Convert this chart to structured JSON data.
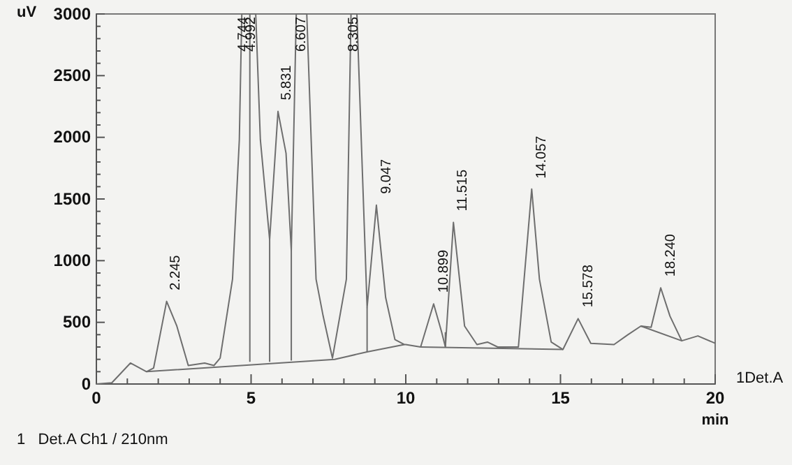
{
  "chart_data": {
    "type": "line",
    "xlabel": "min",
    "ylabel": "uV",
    "xlim": [
      0,
      20
    ],
    "ylim": [
      0,
      3000
    ],
    "xticks": [
      0,
      {
        "value": 1,
        "label": null
      },
      {
        "value": 2,
        "label": null
      },
      {
        "value": 3,
        "label": null
      },
      {
        "value": 4,
        "label": null
      },
      5,
      {
        "value": 6,
        "label": null
      },
      {
        "value": 7,
        "label": null
      },
      {
        "value": 8,
        "label": null
      },
      {
        "value": 9,
        "label": null
      },
      10,
      {
        "value": 11,
        "label": null
      },
      {
        "value": 12,
        "label": null
      },
      {
        "value": 13,
        "label": null
      },
      {
        "value": 14,
        "label": null
      },
      15,
      {
        "value": 16,
        "label": null
      },
      {
        "value": 17,
        "label": null
      },
      {
        "value": 18,
        "label": null
      },
      {
        "value": 19,
        "label": null
      },
      20
    ],
    "yticks": [
      0,
      {
        "value": 100,
        "label": null
      },
      {
        "value": 200,
        "label": null
      },
      {
        "value": 300,
        "label": null
      },
      {
        "value": 400,
        "label": null
      },
      500,
      {
        "value": 600,
        "label": null
      },
      {
        "value": 700,
        "label": null
      },
      {
        "value": 800,
        "label": null
      },
      {
        "value": 900,
        "label": null
      },
      1000,
      {
        "value": 1100,
        "label": null
      },
      {
        "value": 1200,
        "label": null
      },
      {
        "value": 1300,
        "label": null
      },
      {
        "value": 1400,
        "label": null
      },
      1500,
      {
        "value": 1600,
        "label": null
      },
      {
        "value": 1700,
        "label": null
      },
      {
        "value": 1800,
        "label": null
      },
      {
        "value": 1900,
        "label": null
      },
      2000,
      {
        "value": 2100,
        "label": null
      },
      {
        "value": 2200,
        "label": null
      },
      {
        "value": 2300,
        "label": null
      },
      {
        "value": 2400,
        "label": null
      },
      2500,
      {
        "value": 2600,
        "label": null
      },
      {
        "value": 2700,
        "label": null
      },
      {
        "value": 2800,
        "label": null
      },
      {
        "value": 2900,
        "label": null
      },
      3000
    ],
    "marker": "none",
    "line_style": "solid",
    "series": [
      {
        "color": "#6e6e6e",
        "x": [
          0,
          0.5,
          1.1,
          1.62,
          1.85,
          2.27,
          2.6,
          2.97,
          3.5,
          3.8,
          4.0,
          4.4,
          4.62,
          4.7,
          5.15,
          5.3,
          5.6,
          5.87,
          6.13,
          6.3,
          6.46,
          6.8,
          7.1,
          7.33,
          7.63,
          8.08,
          8.23,
          8.42,
          8.75,
          9.05,
          9.35,
          9.65,
          9.95,
          10.0,
          10.48,
          10.9,
          11.16,
          11.28,
          11.54,
          11.9,
          12.3,
          12.64,
          12.97,
          13.64,
          14.07,
          14.32,
          14.7,
          15.08,
          15.57,
          15.98,
          16.73,
          17.18,
          17.6,
          17.93,
          18.24,
          18.54,
          18.92,
          19.44,
          20.0
        ],
        "values": [
          0,
          10,
          170,
          100,
          130,
          670,
          470,
          150,
          170,
          150,
          210,
          850,
          1980,
          3000,
          3000,
          1980,
          1170,
          2210,
          1870,
          1080,
          3000,
          3000,
          850,
          550,
          210,
          850,
          3000,
          3000,
          620,
          1450,
          700,
          360,
          320,
          320,
          300,
          650,
          420,
          300,
          1310,
          470,
          320,
          340,
          300,
          300,
          1580,
          850,
          340,
          280,
          530,
          330,
          320,
          400,
          470,
          460,
          780,
          550,
          350,
          390,
          330
        ]
      },
      {
        "color": "#6e6e6e",
        "x": [
          1.62,
          7.7,
          8.75,
          9.95
        ],
        "values": [
          100,
          200,
          260,
          320
        ]
      },
      {
        "color": "#6e6e6e",
        "x": [
          10.48,
          15.08
        ],
        "values": [
          300,
          280
        ]
      },
      {
        "color": "#6e6e6e",
        "x": [
          17.6,
          18.92
        ],
        "values": [
          470,
          350
        ]
      },
      {
        "type": "bar",
        "color": "#6e6e6e",
        "x": [
          4.96,
          5.6,
          6.3,
          8.75,
          11.28
        ],
        "base": [
          180,
          180,
          190,
          260,
          300
        ],
        "values": [
          2820,
          990,
          890,
          360,
          120
        ]
      }
    ],
    "annotations": [
      {
        "text": "2.245",
        "x": 2.245,
        "y": 670
      },
      {
        "text": "4.744",
        "x": 4.744,
        "y": 3000
      },
      {
        "text": "4.992",
        "x": 4.992,
        "y": 3000
      },
      {
        "text": "5.831",
        "x": 5.831,
        "y": 2210
      },
      {
        "text": "6.607",
        "x": 6.607,
        "y": 3000
      },
      {
        "text": "8.305",
        "x": 8.305,
        "y": 3000
      },
      {
        "text": "9.047",
        "x": 9.047,
        "y": 1450
      },
      {
        "text": "10.899",
        "x": 10.899,
        "y": 650
      },
      {
        "text": "11.515",
        "x": 11.515,
        "y": 1310
      },
      {
        "text": "14.057",
        "x": 14.057,
        "y": 1575
      },
      {
        "text": "15.578",
        "x": 15.578,
        "y": 530
      },
      {
        "text": "18.240",
        "x": 18.24,
        "y": 780
      },
      "1Det.A",
      "1   Det.A Ch1 / 210nm"
    ]
  }
}
